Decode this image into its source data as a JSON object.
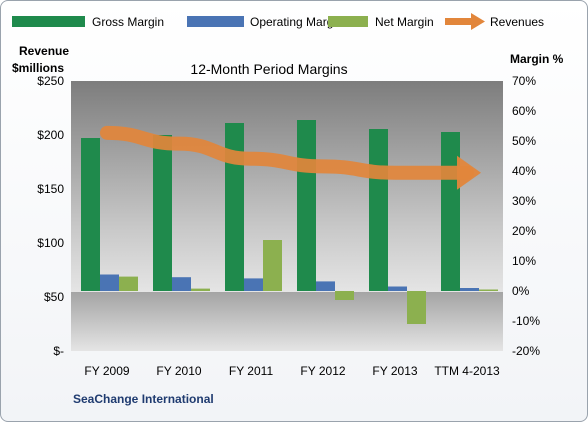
{
  "chart_data": {
    "type": "bar",
    "title": "12-Month Period Margins",
    "company": "SeaChange International",
    "categories": [
      "FY 2009",
      "FY 2010",
      "FY 2011",
      "FY 2012",
      "FY 2013",
      "TTM 4-2013"
    ],
    "series": [
      {
        "name": "Gross Margin",
        "axis": "right",
        "color": "#1f8a4c",
        "values": [
          51,
          52,
          56,
          57,
          54,
          53
        ]
      },
      {
        "name": "Operating Margin",
        "axis": "right",
        "color": "#4a74b4",
        "values": [
          5.5,
          4.6,
          4.2,
          3.2,
          1.5,
          1.0
        ]
      },
      {
        "name": "Net Margin",
        "axis": "right",
        "color": "#8cb04f",
        "values": [
          4.8,
          0.8,
          17,
          -3,
          -11,
          0.5
        ]
      },
      {
        "name": "Revenues",
        "axis": "left",
        "type": "line",
        "color": "#e2863b",
        "values": [
          202,
          192,
          178,
          171,
          165,
          165
        ]
      }
    ],
    "left_axis": {
      "label_line1": "Revenue",
      "label_line2": "$millions",
      "ylim": [
        0,
        250
      ],
      "ticks": [
        0,
        50,
        100,
        150,
        200,
        250
      ],
      "tick_labels": [
        "$-",
        "$50",
        "$100",
        "$150",
        "$200",
        "$250"
      ]
    },
    "right_axis": {
      "label": "Margin %",
      "ylim": [
        -20,
        70
      ],
      "ticks": [
        -20,
        -10,
        0,
        10,
        20,
        30,
        40,
        50,
        60,
        70
      ],
      "tick_labels": [
        "-20%",
        "-10%",
        "0%",
        "10%",
        "20%",
        "30%",
        "40%",
        "50%",
        "60%",
        "70%"
      ]
    },
    "grid": false,
    "legend_position": "top"
  }
}
